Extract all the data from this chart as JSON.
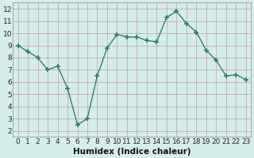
{
  "x": [
    0,
    1,
    2,
    3,
    4,
    5,
    6,
    7,
    8,
    9,
    10,
    11,
    12,
    13,
    14,
    15,
    16,
    17,
    18,
    19,
    20,
    21,
    22,
    23
  ],
  "y": [
    9.0,
    8.5,
    8.0,
    7.0,
    7.3,
    5.5,
    2.5,
    3.0,
    6.5,
    8.8,
    9.9,
    9.7,
    9.7,
    9.4,
    9.3,
    11.3,
    11.8,
    10.8,
    10.1,
    8.6,
    7.8,
    6.5,
    6.6,
    6.2
  ],
  "line_color": "#2e7d6e",
  "marker": "+",
  "markersize": 4,
  "markeredgewidth": 1.2,
  "linewidth": 1.0,
  "xlabel": "Humidex (Indice chaleur)",
  "xlim": [
    -0.5,
    23.5
  ],
  "ylim": [
    1.5,
    12.5
  ],
  "yticks": [
    2,
    3,
    4,
    5,
    6,
    7,
    8,
    9,
    10,
    11,
    12
  ],
  "xticks": [
    0,
    1,
    2,
    3,
    4,
    5,
    6,
    7,
    8,
    9,
    10,
    11,
    12,
    13,
    14,
    15,
    16,
    17,
    18,
    19,
    20,
    21,
    22,
    23
  ],
  "bg_color": "#d4eeec",
  "grid_color": "#c8a8a8",
  "tick_label_fontsize": 6.5,
  "xlabel_fontsize": 7.5
}
